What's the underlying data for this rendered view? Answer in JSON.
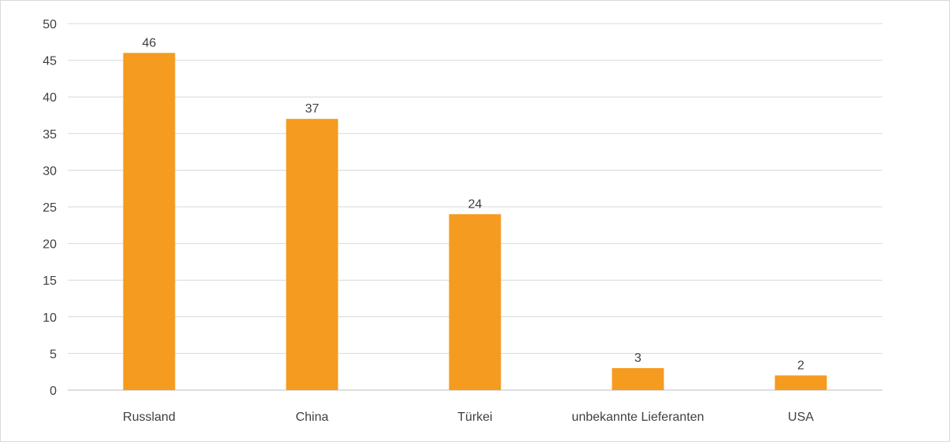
{
  "chart_data": {
    "type": "bar",
    "categories": [
      "Russland",
      "China",
      "Türkei",
      "unbekannte Lieferanten",
      "USA"
    ],
    "values": [
      46,
      37,
      24,
      3,
      2
    ],
    "data_labels": [
      "46",
      "37",
      "24",
      "3",
      "2"
    ],
    "ylim": [
      0,
      50
    ],
    "yticks": [
      "0",
      "5",
      "10",
      "15",
      "20",
      "25",
      "30",
      "35",
      "40",
      "45",
      "50"
    ],
    "grid": true,
    "legend": "none",
    "bar_color": "#F59B1F"
  }
}
